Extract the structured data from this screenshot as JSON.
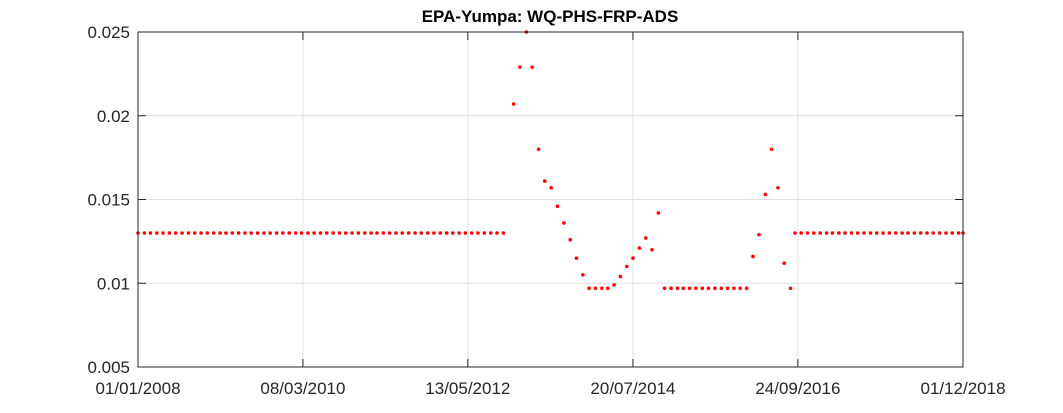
{
  "chart_data": {
    "type": "scatter",
    "title": "EPA-Yumpa: WQ-PHS-FRP-ADS",
    "xlabel": "",
    "ylabel": "",
    "xlim": [
      "2008-01-01",
      "2018-12-01"
    ],
    "ylim": [
      0.005,
      0.025
    ],
    "x_tick_labels": [
      "01/01/2008",
      "08/03/2010",
      "13/05/2012",
      "20/07/2014",
      "24/09/2016",
      "01/12/2018"
    ],
    "x_tick_dates": [
      "2008-01-01",
      "2010-03-08",
      "2012-05-13",
      "2014-07-20",
      "2016-09-24",
      "2018-12-01"
    ],
    "y_ticks": [
      0.005,
      0.01,
      0.015,
      0.02,
      0.025
    ],
    "y_tick_labels": [
      "0.005",
      "0.01",
      "0.015",
      "0.02",
      "0.025"
    ],
    "grid": true,
    "marker_color": "#ff0000",
    "axis_color": "#262626",
    "grid_color": "#dfdfdf",
    "series": [
      {
        "points": [
          {
            "x": "2008-01-01",
            "y": 0.013
          },
          {
            "x": "2008-02-01",
            "y": 0.013
          },
          {
            "x": "2008-03-01",
            "y": 0.013
          },
          {
            "x": "2008-04-01",
            "y": 0.013
          },
          {
            "x": "2008-05-01",
            "y": 0.013
          },
          {
            "x": "2008-06-01",
            "y": 0.013
          },
          {
            "x": "2008-07-01",
            "y": 0.013
          },
          {
            "x": "2008-08-01",
            "y": 0.013
          },
          {
            "x": "2008-09-01",
            "y": 0.013
          },
          {
            "x": "2008-10-01",
            "y": 0.013
          },
          {
            "x": "2008-11-01",
            "y": 0.013
          },
          {
            "x": "2008-12-01",
            "y": 0.013
          },
          {
            "x": "2009-01-01",
            "y": 0.013
          },
          {
            "x": "2009-02-01",
            "y": 0.013
          },
          {
            "x": "2009-03-01",
            "y": 0.013
          },
          {
            "x": "2009-04-01",
            "y": 0.013
          },
          {
            "x": "2009-05-01",
            "y": 0.013
          },
          {
            "x": "2009-06-01",
            "y": 0.013
          },
          {
            "x": "2009-07-01",
            "y": 0.013
          },
          {
            "x": "2009-08-01",
            "y": 0.013
          },
          {
            "x": "2009-09-01",
            "y": 0.013
          },
          {
            "x": "2009-10-01",
            "y": 0.013
          },
          {
            "x": "2009-11-01",
            "y": 0.013
          },
          {
            "x": "2009-12-01",
            "y": 0.013
          },
          {
            "x": "2010-01-01",
            "y": 0.013
          },
          {
            "x": "2010-02-01",
            "y": 0.013
          },
          {
            "x": "2010-03-01",
            "y": 0.013
          },
          {
            "x": "2010-04-01",
            "y": 0.013
          },
          {
            "x": "2010-05-01",
            "y": 0.013
          },
          {
            "x": "2010-06-01",
            "y": 0.013
          },
          {
            "x": "2010-07-01",
            "y": 0.013
          },
          {
            "x": "2010-08-01",
            "y": 0.013
          },
          {
            "x": "2010-09-01",
            "y": 0.013
          },
          {
            "x": "2010-10-01",
            "y": 0.013
          },
          {
            "x": "2010-11-01",
            "y": 0.013
          },
          {
            "x": "2010-12-01",
            "y": 0.013
          },
          {
            "x": "2011-01-01",
            "y": 0.013
          },
          {
            "x": "2011-02-01",
            "y": 0.013
          },
          {
            "x": "2011-03-01",
            "y": 0.013
          },
          {
            "x": "2011-04-01",
            "y": 0.013
          },
          {
            "x": "2011-05-01",
            "y": 0.013
          },
          {
            "x": "2011-06-01",
            "y": 0.013
          },
          {
            "x": "2011-07-01",
            "y": 0.013
          },
          {
            "x": "2011-08-01",
            "y": 0.013
          },
          {
            "x": "2011-09-01",
            "y": 0.013
          },
          {
            "x": "2011-10-01",
            "y": 0.013
          },
          {
            "x": "2011-11-01",
            "y": 0.013
          },
          {
            "x": "2011-12-01",
            "y": 0.013
          },
          {
            "x": "2012-01-01",
            "y": 0.013
          },
          {
            "x": "2012-02-01",
            "y": 0.013
          },
          {
            "x": "2012-03-01",
            "y": 0.013
          },
          {
            "x": "2012-04-01",
            "y": 0.013
          },
          {
            "x": "2012-05-01",
            "y": 0.013
          },
          {
            "x": "2012-06-01",
            "y": 0.013
          },
          {
            "x": "2012-07-01",
            "y": 0.013
          },
          {
            "x": "2012-08-01",
            "y": 0.013
          },
          {
            "x": "2012-09-01",
            "y": 0.013
          },
          {
            "x": "2012-10-01",
            "y": 0.013
          },
          {
            "x": "2012-11-01",
            "y": 0.013
          },
          {
            "x": "2012-12-20",
            "y": 0.0207
          },
          {
            "x": "2013-01-20",
            "y": 0.0229
          },
          {
            "x": "2013-02-20",
            "y": 0.025
          },
          {
            "x": "2013-03-20",
            "y": 0.0229
          },
          {
            "x": "2013-04-20",
            "y": 0.018
          },
          {
            "x": "2013-05-20",
            "y": 0.0161
          },
          {
            "x": "2013-06-20",
            "y": 0.0157
          },
          {
            "x": "2013-07-20",
            "y": 0.0146
          },
          {
            "x": "2013-08-20",
            "y": 0.0136
          },
          {
            "x": "2013-09-20",
            "y": 0.0126
          },
          {
            "x": "2013-10-20",
            "y": 0.0115
          },
          {
            "x": "2013-11-20",
            "y": 0.0105
          },
          {
            "x": "2013-12-20",
            "y": 0.0097
          },
          {
            "x": "2014-01-20",
            "y": 0.0097
          },
          {
            "x": "2014-02-20",
            "y": 0.0097
          },
          {
            "x": "2014-03-20",
            "y": 0.0097
          },
          {
            "x": "2014-04-20",
            "y": 0.0099
          },
          {
            "x": "2014-05-20",
            "y": 0.0104
          },
          {
            "x": "2014-06-20",
            "y": 0.011
          },
          {
            "x": "2014-07-20",
            "y": 0.0115
          },
          {
            "x": "2014-08-20",
            "y": 0.0121
          },
          {
            "x": "2014-09-20",
            "y": 0.0127
          },
          {
            "x": "2014-10-20",
            "y": 0.012
          },
          {
            "x": "2014-11-20",
            "y": 0.0142
          },
          {
            "x": "2014-12-20",
            "y": 0.0097
          },
          {
            "x": "2015-01-20",
            "y": 0.0097
          },
          {
            "x": "2015-02-20",
            "y": 0.0097
          },
          {
            "x": "2015-03-20",
            "y": 0.0097
          },
          {
            "x": "2015-04-20",
            "y": 0.0097
          },
          {
            "x": "2015-05-20",
            "y": 0.0097
          },
          {
            "x": "2015-06-20",
            "y": 0.0097
          },
          {
            "x": "2015-07-20",
            "y": 0.0097
          },
          {
            "x": "2015-08-20",
            "y": 0.0097
          },
          {
            "x": "2015-09-20",
            "y": 0.0097
          },
          {
            "x": "2015-10-20",
            "y": 0.0097
          },
          {
            "x": "2015-11-20",
            "y": 0.0097
          },
          {
            "x": "2015-12-20",
            "y": 0.0097
          },
          {
            "x": "2016-01-20",
            "y": 0.0097
          },
          {
            "x": "2016-02-20",
            "y": 0.0116
          },
          {
            "x": "2016-03-20",
            "y": 0.0129
          },
          {
            "x": "2016-04-20",
            "y": 0.0153
          },
          {
            "x": "2016-05-20",
            "y": 0.018
          },
          {
            "x": "2016-06-20",
            "y": 0.0157
          },
          {
            "x": "2016-07-20",
            "y": 0.0112
          },
          {
            "x": "2016-08-20",
            "y": 0.0097
          },
          {
            "x": "2016-09-10",
            "y": 0.013
          },
          {
            "x": "2016-10-10",
            "y": 0.013
          },
          {
            "x": "2016-11-10",
            "y": 0.013
          },
          {
            "x": "2016-12-10",
            "y": 0.013
          },
          {
            "x": "2017-01-10",
            "y": 0.013
          },
          {
            "x": "2017-02-10",
            "y": 0.013
          },
          {
            "x": "2017-03-10",
            "y": 0.013
          },
          {
            "x": "2017-04-10",
            "y": 0.013
          },
          {
            "x": "2017-05-10",
            "y": 0.013
          },
          {
            "x": "2017-06-10",
            "y": 0.013
          },
          {
            "x": "2017-07-10",
            "y": 0.013
          },
          {
            "x": "2017-08-10",
            "y": 0.013
          },
          {
            "x": "2017-09-10",
            "y": 0.013
          },
          {
            "x": "2017-10-10",
            "y": 0.013
          },
          {
            "x": "2017-11-10",
            "y": 0.013
          },
          {
            "x": "2017-12-10",
            "y": 0.013
          },
          {
            "x": "2018-01-10",
            "y": 0.013
          },
          {
            "x": "2018-02-10",
            "y": 0.013
          },
          {
            "x": "2018-03-10",
            "y": 0.013
          },
          {
            "x": "2018-04-10",
            "y": 0.013
          },
          {
            "x": "2018-05-10",
            "y": 0.013
          },
          {
            "x": "2018-06-10",
            "y": 0.013
          },
          {
            "x": "2018-07-10",
            "y": 0.013
          },
          {
            "x": "2018-08-10",
            "y": 0.013
          },
          {
            "x": "2018-09-10",
            "y": 0.013
          },
          {
            "x": "2018-10-10",
            "y": 0.013
          },
          {
            "x": "2018-11-10",
            "y": 0.013
          },
          {
            "x": "2018-12-01",
            "y": 0.013
          }
        ]
      }
    ]
  }
}
